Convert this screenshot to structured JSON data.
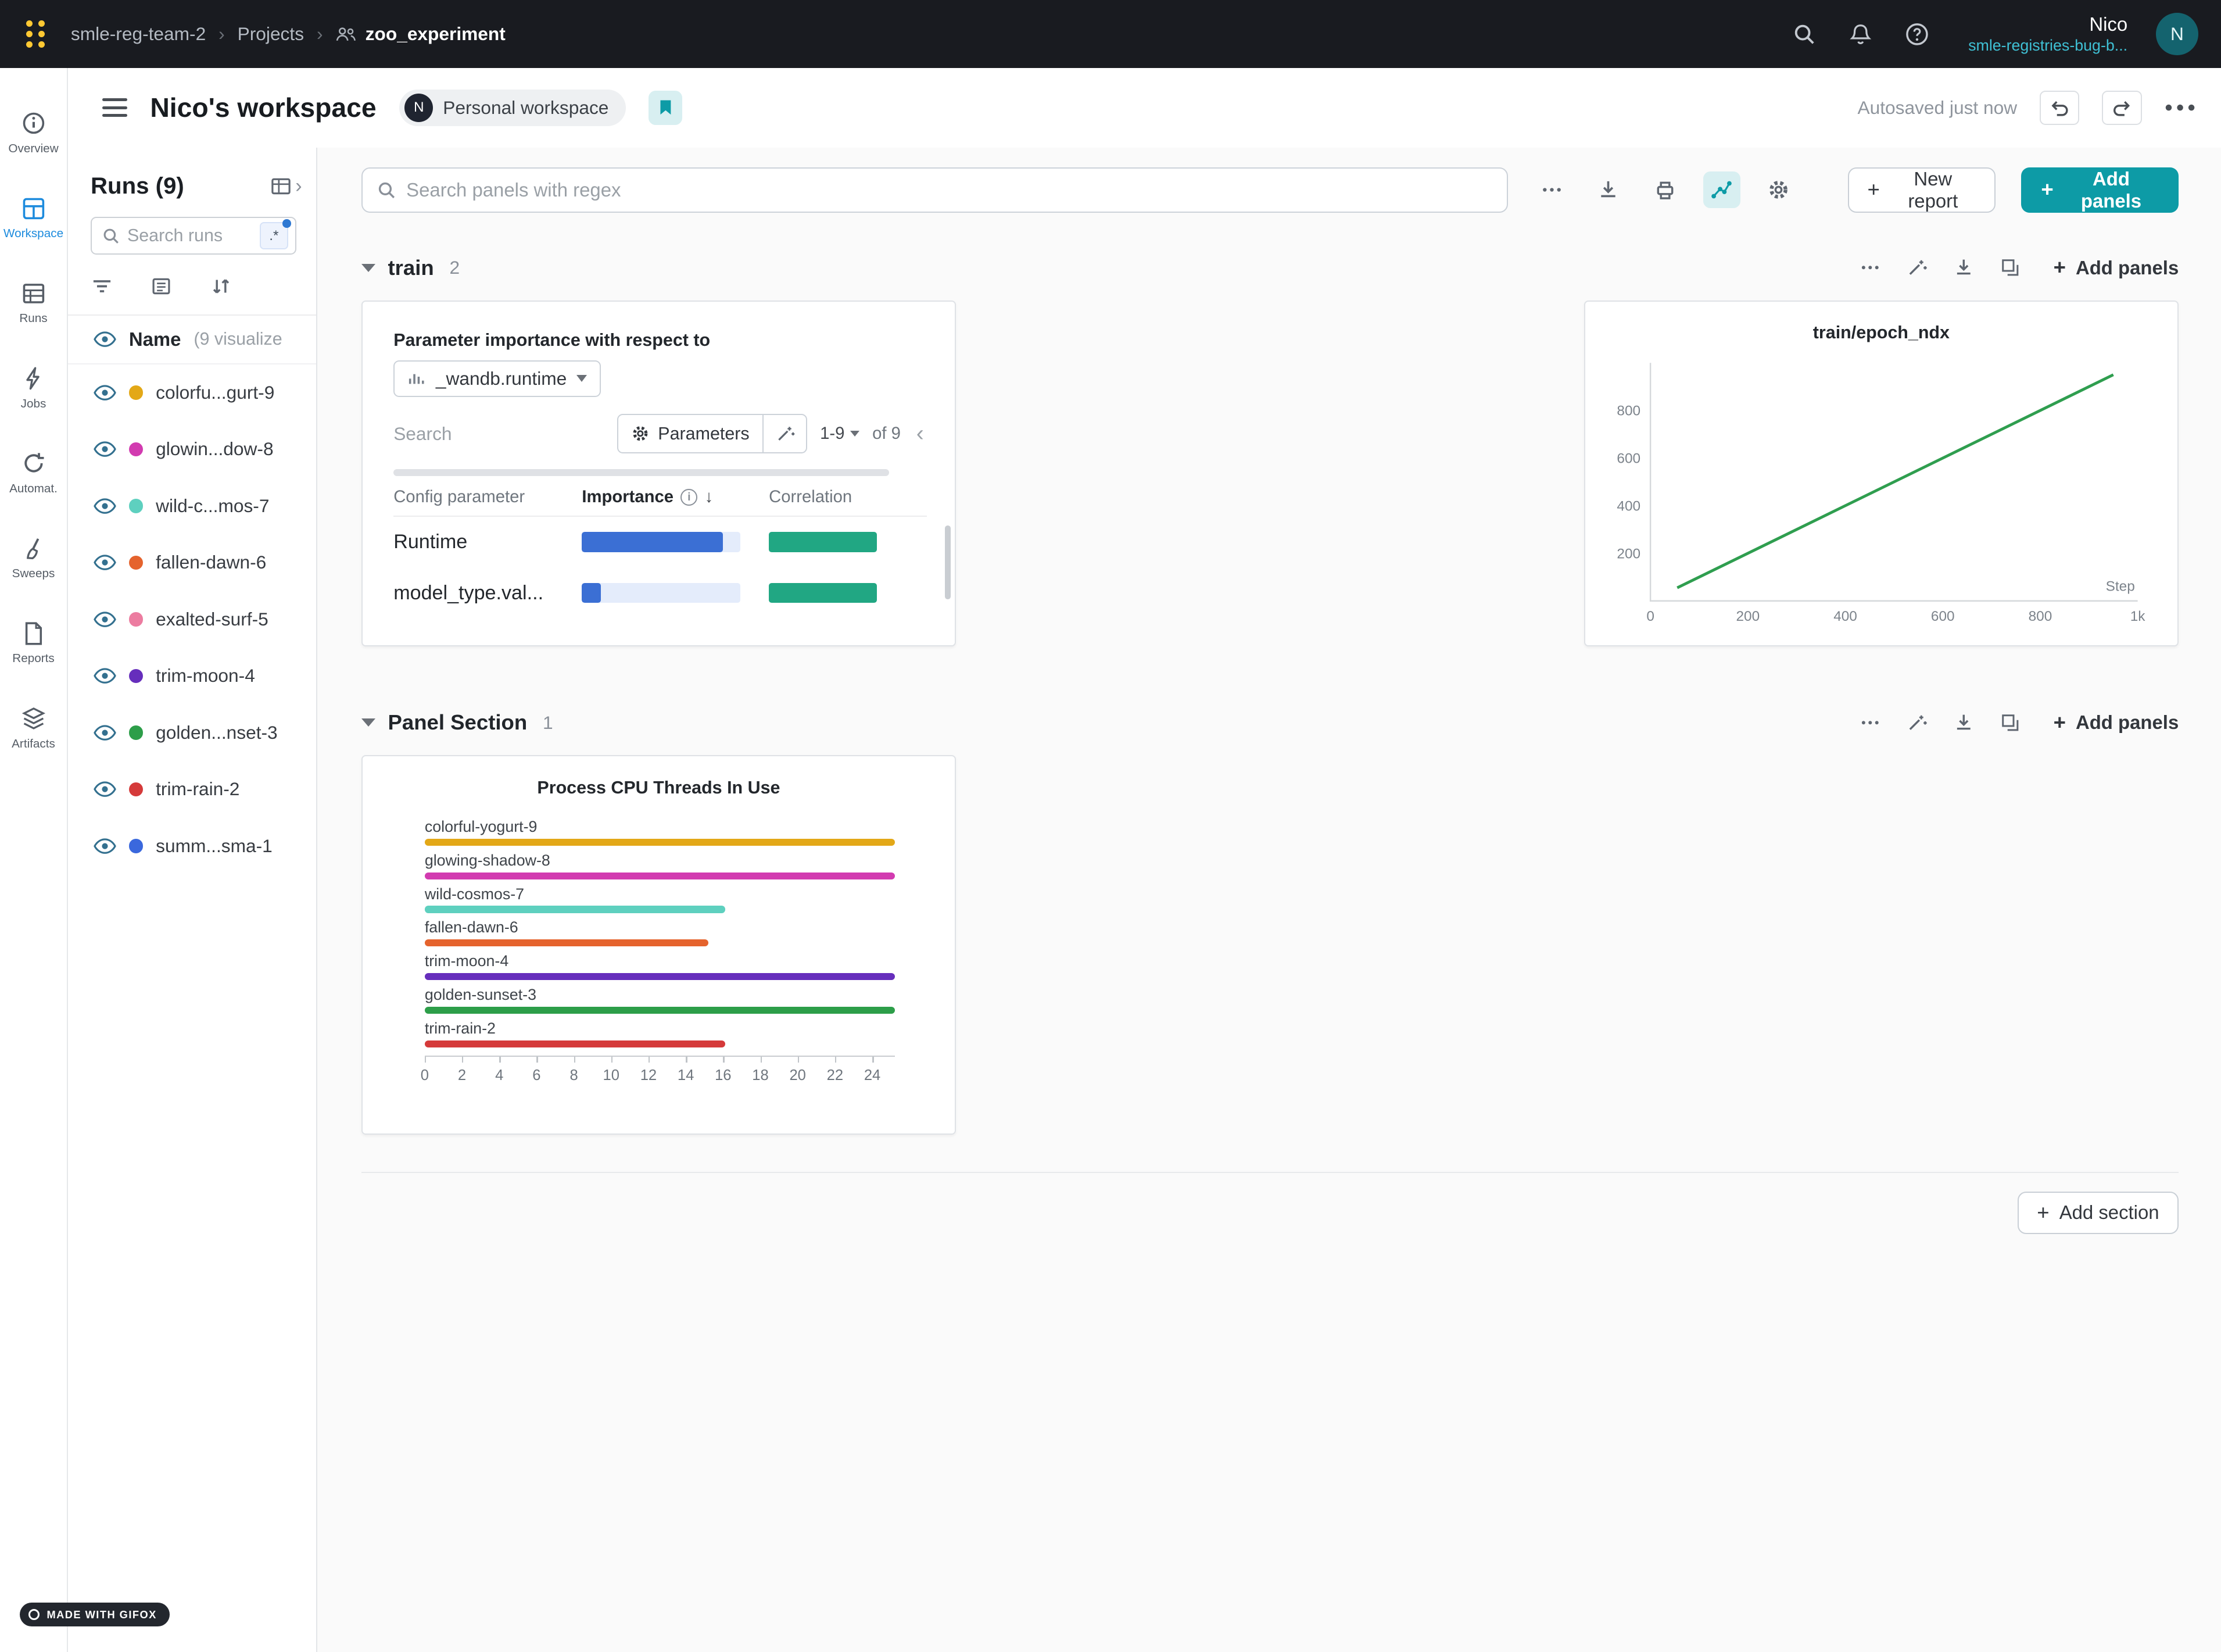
{
  "colors": {
    "accent": "#0d9ba6",
    "accent_light": "#d8eff1",
    "active_blue": "#1d8bdd",
    "navbar_bg": "#191b20",
    "logo_gold": "#ffc933",
    "link_teal": "#3fc0d4"
  },
  "navbar": {
    "breadcrumb": {
      "team": "smle-reg-team-2",
      "section": "Projects",
      "project": "zoo_experiment"
    },
    "user": {
      "name": "Nico",
      "org": "smle-registries-bug-b...",
      "avatar_initial": "N"
    }
  },
  "header": {
    "title": "Nico's workspace",
    "badge_initial": "N",
    "badge_label": "Personal workspace",
    "autosave": "Autosaved just now"
  },
  "rail": {
    "active_index": 1,
    "items": [
      {
        "label": "Overview"
      },
      {
        "label": "Workspace"
      },
      {
        "label": "Runs"
      },
      {
        "label": "Jobs"
      },
      {
        "label": "Automat."
      },
      {
        "label": "Sweeps"
      },
      {
        "label": "Reports"
      },
      {
        "label": "Artifacts"
      }
    ]
  },
  "runs_panel": {
    "title": "Runs (9)",
    "search_placeholder": "Search runs",
    "regex_label": ".*",
    "name_label": "Name",
    "name_suffix": "(9 visualize",
    "runs": [
      {
        "name": "colorfu...gurt-9",
        "color": "#e3a817"
      },
      {
        "name": "glowin...dow-8",
        "color": "#d23bb0"
      },
      {
        "name": "wild-c...mos-7",
        "color": "#5ed0bf"
      },
      {
        "name": "fallen-dawn-6",
        "color": "#e5632d"
      },
      {
        "name": "exalted-surf-5",
        "color": "#ec7ca0"
      },
      {
        "name": "trim-moon-4",
        "color": "#662ebc"
      },
      {
        "name": "golden...nset-3",
        "color": "#2d9e49"
      },
      {
        "name": "trim-rain-2",
        "color": "#d53a3a"
      },
      {
        "name": "summ...sma-1",
        "color": "#3a68dd"
      }
    ]
  },
  "toolbar": {
    "search_placeholder": "Search panels with regex",
    "new_report_label": "New report",
    "add_panels_label": "Add panels"
  },
  "train_section": {
    "title": "train",
    "count": "2",
    "add_panels_label": "Add panels"
  },
  "importance_panel": {
    "title": "Parameter importance with respect to",
    "target_metric": "_wandb.runtime",
    "search_placeholder": "Search",
    "parameters_label": "Parameters",
    "page_range": "1-9",
    "page_of": "of 9",
    "col_param": "Config parameter",
    "col_importance": "Importance",
    "col_correlation": "Correlation",
    "importance_color": "#3b6fd4",
    "importance_track_color": "#e4ecfb",
    "correlation_color": "#21a783",
    "rows": [
      {
        "param": "Runtime",
        "importance": 0.89,
        "correlation": 0.68
      },
      {
        "param": "model_type.val...",
        "importance": 0.12,
        "correlation": 0.68
      }
    ]
  },
  "epoch_chart": {
    "type": "line",
    "title": "train/epoch_ndx",
    "xlabel": "Step",
    "xlim": [
      0,
      1000
    ],
    "ylim": [
      0,
      1000
    ],
    "x_ticks": [
      "0",
      "200",
      "400",
      "600",
      "800",
      "1k"
    ],
    "x_tick_values": [
      0,
      200,
      400,
      600,
      800,
      1000
    ],
    "y_ticks": [
      200,
      400,
      600,
      800
    ],
    "x": [
      55,
      950
    ],
    "y": [
      55,
      950
    ],
    "line_color": "#2f9e4f"
  },
  "panel_section": {
    "title": "Panel Section",
    "count": "1",
    "add_panels_label": "Add panels"
  },
  "cpu_chart": {
    "type": "bar-horizontal",
    "title": "Process CPU Threads In Use",
    "xlim": [
      0,
      24
    ],
    "x_ticks": [
      0,
      2,
      4,
      6,
      8,
      10,
      12,
      14,
      16,
      18,
      20,
      22,
      24
    ],
    "bars": [
      {
        "label": "colorful-yogurt-9",
        "value": 25.2,
        "color": "#e3a817"
      },
      {
        "label": "glowing-shadow-8",
        "value": 25.2,
        "color": "#d23bb0"
      },
      {
        "label": "wild-cosmos-7",
        "value": 16.1,
        "color": "#5ed0bf"
      },
      {
        "label": "fallen-dawn-6",
        "value": 15.2,
        "color": "#e5632d"
      },
      {
        "label": "trim-moon-4",
        "value": 25.2,
        "color": "#662ebc"
      },
      {
        "label": "golden-sunset-3",
        "value": 25.2,
        "color": "#2d9e49"
      },
      {
        "label": "trim-rain-2",
        "value": 16.1,
        "color": "#d53a3a"
      }
    ]
  },
  "add_section_label": "Add section",
  "gifox_label": "MADE WITH GIFOX"
}
